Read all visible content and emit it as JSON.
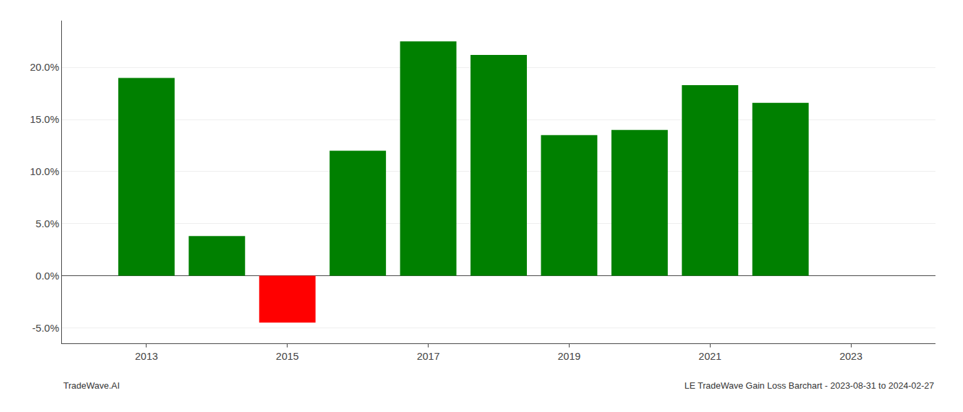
{
  "chart_data": {
    "type": "bar",
    "x": [
      2013,
      2014,
      2015,
      2016,
      2017,
      2018,
      2019,
      2020,
      2021,
      2022
    ],
    "values": [
      0.19,
      0.038,
      -0.045,
      0.12,
      0.225,
      0.212,
      0.135,
      0.14,
      0.183,
      0.166
    ],
    "colors": [
      "#008000",
      "#008000",
      "#ff0000",
      "#008000",
      "#008000",
      "#008000",
      "#008000",
      "#008000",
      "#008000",
      "#008000"
    ],
    "xlim": [
      2011.8,
      2024.2
    ],
    "xticks": [
      2013,
      2015,
      2017,
      2019,
      2021,
      2023
    ],
    "ylim": [
      -0.065,
      0.245
    ],
    "yticks": [
      {
        "value": -0.05,
        "label": "-5.0%"
      },
      {
        "value": 0.0,
        "label": "0.0%"
      },
      {
        "value": 0.05,
        "label": "5.0%"
      },
      {
        "value": 0.1,
        "label": "10.0%"
      },
      {
        "value": 0.15,
        "label": "15.0%"
      },
      {
        "value": 0.2,
        "label": "20.0%"
      }
    ],
    "grid": true,
    "annotations": [
      "TradeWave.AI",
      "LE TradeWave Gain Loss Barchart - 2023-08-31 to 2024-02-27"
    ]
  }
}
